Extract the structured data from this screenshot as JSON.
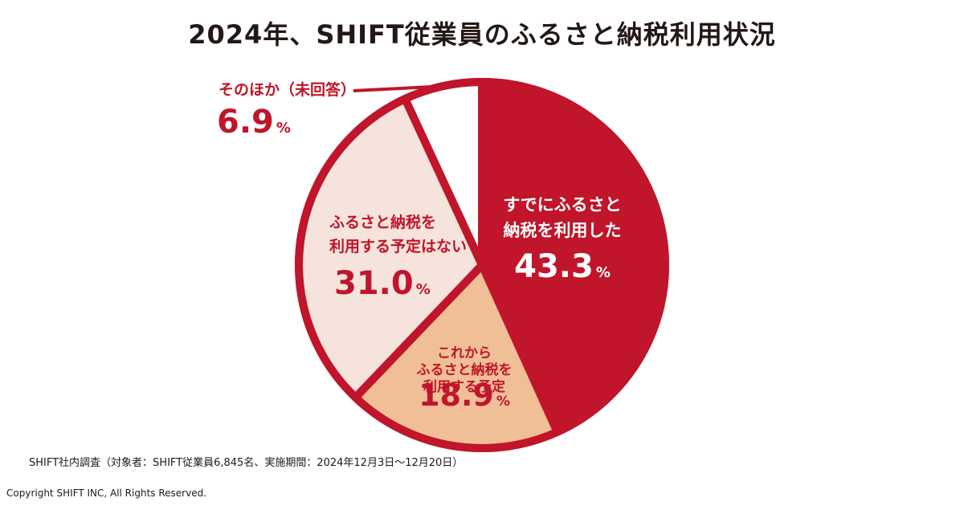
{
  "chart_data": {
    "type": "pie",
    "title": "2024年、SHIFT従業員のふるさと納税利用状況",
    "slices": [
      {
        "lines": [
          "すでにふるさと",
          "納税を利用した"
        ],
        "value": 43.3,
        "value_text": "43.3",
        "unit": "%",
        "color": "#c0152a",
        "text_color": "#ffffff"
      },
      {
        "lines": [
          "これから",
          "ふるさと納税を",
          "利用する予定"
        ],
        "value": 18.9,
        "value_text": "18.9",
        "unit": "%",
        "color": "#f1bf97",
        "text_color": "#c0152a"
      },
      {
        "lines": [
          "ふるさと納税を",
          "利用する予定はない"
        ],
        "value": 31.0,
        "value_text": "31.0",
        "unit": "%",
        "color": "#f6e3dc",
        "text_color": "#c0152a"
      },
      {
        "lines": [
          "そのほか（未回答）"
        ],
        "value": 6.9,
        "value_text": "6.9",
        "unit": "%",
        "color": "#ffffff",
        "text_color": "#c0152a"
      }
    ],
    "border_color": "#c0152a"
  },
  "footer": {
    "source": "SHIFT社内調査（対象者：SHIFT従業員6,845名、実施期間：2024年12月3日～12月20日）",
    "copyright": "Copyright SHIFT INC, All Rights Reserved."
  }
}
